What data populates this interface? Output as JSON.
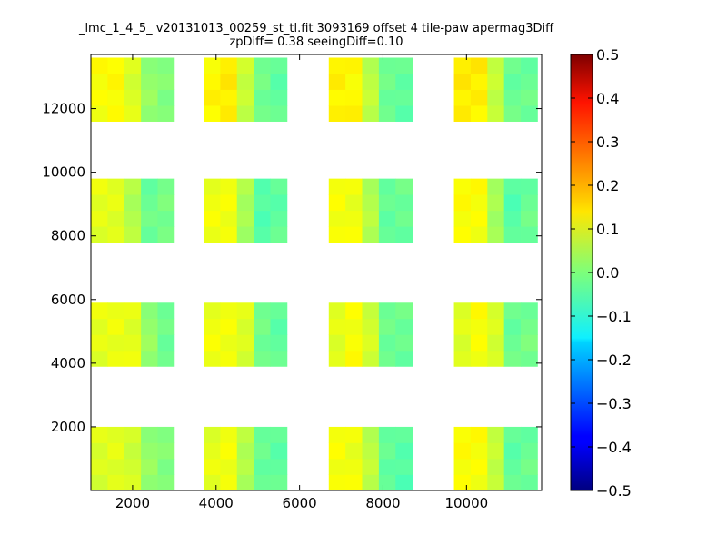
{
  "chart_data": {
    "type": "heatmap",
    "title": "_lmc_1_4_5_ v20131013_00259_st_tl.fit 3093169 offset 4 tile-paw apermag3Diff",
    "subtitle": "zpDiff= 0.38 seeingDiff=0.10",
    "xlabel": "",
    "ylabel": "",
    "xlim": [
      1000,
      11800
    ],
    "ylim": [
      0,
      13700
    ],
    "x_ticks": [
      2000,
      4000,
      6000,
      8000,
      10000
    ],
    "x_tick_labels": [
      "2000",
      "4000",
      "6000",
      "8000",
      "10000"
    ],
    "y_ticks": [
      2000,
      4000,
      6000,
      8000,
      10000,
      12000
    ],
    "y_tick_labels": [
      "2000",
      "4000",
      "6000",
      "8000",
      "10000",
      "12000"
    ],
    "colorbar": {
      "colormap": "jet",
      "range": [
        -0.5,
        0.5
      ],
      "ticks": [
        0.5,
        0.4,
        0.3,
        0.2,
        0.1,
        0.0,
        -0.1,
        -0.2,
        -0.3,
        -0.4,
        -0.5
      ],
      "tick_labels": [
        "0.5",
        "0.4",
        "0.3",
        "0.2",
        "0.1",
        "0.0",
        "−0.1",
        "−0.2",
        "−0.3",
        "−0.4",
        "−0.5"
      ]
    },
    "cell_size": [
      500,
      500
    ],
    "column_x_ranges": [
      [
        1000,
        3000
      ],
      [
        3700,
        5700
      ],
      [
        6700,
        8700
      ],
      [
        9700,
        11700
      ]
    ],
    "row_y_ranges": [
      [
        0,
        2100
      ],
      [
        3900,
        6000
      ],
      [
        7800,
        9900
      ],
      [
        11600,
        13700
      ]
    ],
    "cell_values": [
      [
        [
          0.09,
          0.1,
          0.08,
          0.02,
          0.0
        ],
        [
          0.1,
          0.11,
          0.05,
          -0.02,
          -0.03
        ],
        [
          0.12,
          0.11,
          0.06,
          -0.03,
          -0.04
        ],
        [
          0.12,
          0.12,
          0.07,
          -0.03,
          -0.02
        ]
      ],
      [
        [
          0.1,
          0.11,
          0.1,
          0.02,
          -0.02
        ],
        [
          0.11,
          0.11,
          0.09,
          -0.01,
          -0.03
        ],
        [
          0.1,
          0.12,
          0.08,
          -0.02,
          -0.02
        ],
        [
          0.09,
          0.12,
          0.09,
          -0.02,
          -0.01
        ]
      ],
      [
        [
          0.1,
          0.1,
          0.05,
          -0.02,
          -0.01
        ],
        [
          0.11,
          0.11,
          0.04,
          -0.04,
          -0.03
        ],
        [
          0.12,
          0.11,
          0.05,
          -0.03,
          -0.02
        ],
        [
          0.12,
          0.12,
          0.04,
          -0.04,
          -0.02
        ]
      ],
      [
        [
          0.12,
          0.13,
          0.09,
          0.02,
          0.0
        ],
        [
          0.13,
          0.14,
          0.07,
          -0.01,
          -0.03
        ],
        [
          0.14,
          0.13,
          0.06,
          -0.02,
          -0.03
        ],
        [
          0.14,
          0.14,
          0.07,
          -0.02,
          -0.02
        ]
      ]
    ]
  }
}
